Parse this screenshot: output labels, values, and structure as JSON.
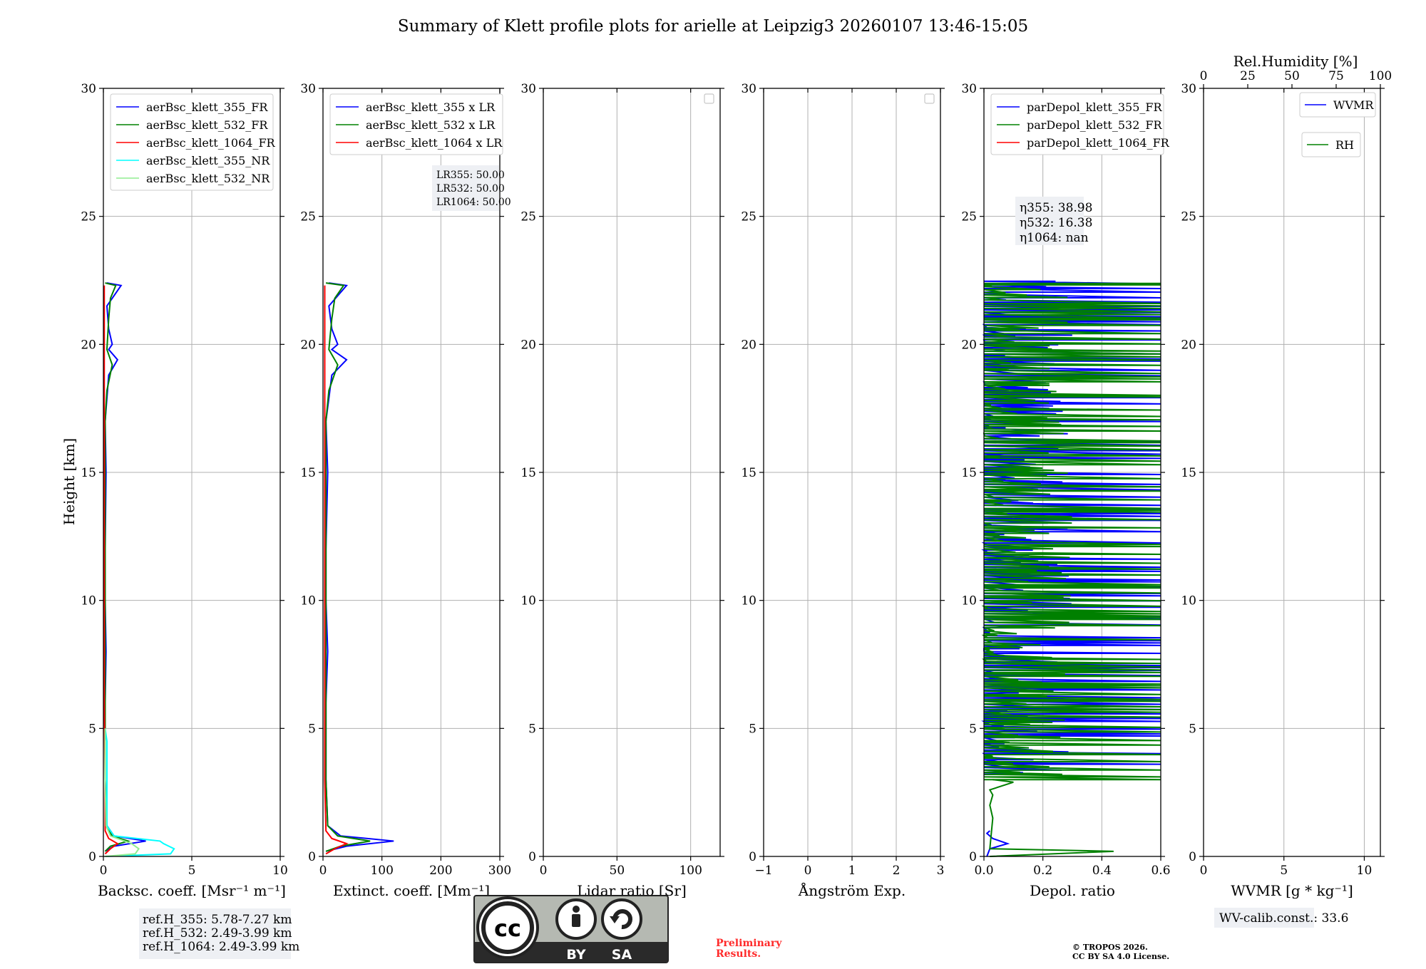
{
  "figure": {
    "title": "Summary of Klett profile plots for arielle at Leipzig3 20260107 13:46-15:05",
    "ylabel": "Height [km]",
    "yticks": [
      "0",
      "5",
      "10",
      "15",
      "20",
      "25",
      "30"
    ]
  },
  "chart_data": [
    {
      "id": "backscatter",
      "type": "line",
      "xlabel": "Backsc. coeff. [Msr⁻¹ m⁻¹]",
      "xlim": [
        0,
        10
      ],
      "ylim": [
        0,
        30
      ],
      "xticks": [
        "0",
        "5",
        "10"
      ],
      "legend": [
        "aerBsc_klett_355_FR",
        "aerBsc_klett_532_FR",
        "aerBsc_klett_1064_FR",
        "aerBsc_klett_355_NR",
        "aerBsc_klett_532_NR"
      ],
      "series": [
        {
          "name": "aerBsc_klett_355_FR",
          "color": "#0000ff",
          "x": [
            0.1,
            0.6,
            2.4,
            0.6,
            0.2,
            0.1,
            0.1,
            0.15,
            0.1,
            0.1,
            0.15,
            0.1,
            0.3,
            0.8,
            0.3,
            0.5,
            0.3,
            0.2,
            1.0,
            0.2
          ],
          "y": [
            0.2,
            0.4,
            0.6,
            0.8,
            1.2,
            3,
            6,
            8,
            10,
            12,
            15,
            17,
            18.8,
            19.4,
            19.8,
            20.0,
            20.6,
            21.5,
            22.3,
            22.4
          ]
        },
        {
          "name": "aerBsc_klett_532_FR",
          "color": "#008000",
          "x": [
            0.1,
            0.4,
            1.4,
            0.5,
            0.15,
            0.1,
            0.1,
            0.1,
            0.1,
            0.1,
            0.1,
            0.1,
            0.2,
            0.5,
            0.2,
            0.3,
            0.4,
            0.7,
            0.1
          ],
          "y": [
            0.2,
            0.4,
            0.6,
            0.8,
            1.2,
            3,
            6,
            8,
            10,
            12,
            15,
            17,
            18.2,
            19.2,
            19.8,
            21.0,
            21.8,
            22.3,
            22.4
          ]
        },
        {
          "name": "aerBsc_klett_1064_FR",
          "color": "#ff0000",
          "x": [
            0.1,
            0.4,
            0.8,
            0.3,
            0.1,
            0.1,
            0.05,
            0.05,
            0.05,
            0.05,
            0.05,
            0.05,
            0.05
          ],
          "y": [
            0.1,
            0.3,
            0.5,
            0.7,
            1.0,
            3,
            6,
            10,
            14,
            18,
            20,
            22,
            22.3
          ]
        },
        {
          "name": "aerBsc_klett_355_NR",
          "color": "#00ffff",
          "x": [
            0.1,
            3.8,
            4.0,
            3.4,
            3.2,
            0.6,
            0.2,
            0.2,
            0.2,
            0.1
          ],
          "y": [
            0.0,
            0.1,
            0.3,
            0.5,
            0.6,
            0.8,
            1.2,
            3.0,
            4.5,
            5.0
          ]
        },
        {
          "name": "aerBsc_klett_532_NR",
          "color": "#90ee90",
          "x": [
            0.1,
            1.8,
            2.0,
            1.6,
            0.4,
            0.15,
            0.1,
            0.1
          ],
          "y": [
            0.0,
            0.1,
            0.3,
            0.5,
            0.8,
            1.2,
            3.0,
            5.0
          ]
        }
      ],
      "footnote": [
        "ref.H_355: 5.78-7.27 km",
        "ref.H_532: 2.49-3.99 km",
        "ref.H_1064: 2.49-3.99 km"
      ]
    },
    {
      "id": "extinction",
      "type": "line",
      "xlabel": "Extinct. coeff. [Mm⁻¹]",
      "xlim": [
        0,
        300
      ],
      "ylim": [
        0,
        30
      ],
      "xticks": [
        "0",
        "100",
        "200",
        "300"
      ],
      "legend": [
        "aerBsc_klett_355 x LR",
        "aerBsc_klett_532 x LR",
        "aerBsc_klett_1064 x LR"
      ],
      "series": [
        {
          "name": "aerBsc_klett_355 x LR",
          "color": "#0000ff",
          "x": [
            5,
            40,
            120,
            30,
            8,
            5,
            5,
            8,
            5,
            5,
            8,
            5,
            15,
            40,
            15,
            25,
            15,
            10,
            40,
            10
          ],
          "y": [
            0.2,
            0.4,
            0.6,
            0.8,
            1.2,
            3,
            6,
            8,
            10,
            12,
            15,
            17,
            18.8,
            19.4,
            19.8,
            20.0,
            20.6,
            21.5,
            22.3,
            22.4
          ]
        },
        {
          "name": "aerBsc_klett_532 x LR",
          "color": "#008000",
          "x": [
            5,
            30,
            80,
            25,
            8,
            5,
            5,
            5,
            5,
            5,
            5,
            5,
            10,
            25,
            10,
            15,
            20,
            35,
            5
          ],
          "y": [
            0.2,
            0.4,
            0.6,
            0.8,
            1.2,
            3,
            6,
            8,
            10,
            12,
            15,
            17,
            18.2,
            19.2,
            19.8,
            21.0,
            21.8,
            22.3,
            22.4
          ]
        },
        {
          "name": "aerBsc_klett_1064 x LR",
          "color": "#ff0000",
          "x": [
            5,
            20,
            40,
            15,
            5,
            3,
            3,
            3,
            3,
            3,
            3
          ],
          "y": [
            0.1,
            0.3,
            0.5,
            0.7,
            1.0,
            3,
            6,
            10,
            14,
            18,
            22.3
          ]
        }
      ],
      "annotation": [
        "LR355: 50.00",
        "LR532: 50.00",
        "LR1064: 50.00"
      ]
    },
    {
      "id": "lidar_ratio",
      "type": "line",
      "xlabel": "Lidar ratio [Sr]",
      "xlim": [
        0,
        120
      ],
      "ylim": [
        0,
        30
      ],
      "xticks": [
        "0",
        "50",
        "100"
      ],
      "series": []
    },
    {
      "id": "angstrom",
      "type": "line",
      "xlabel": "Ångström Exp.",
      "xlim": [
        -1,
        3
      ],
      "ylim": [
        0,
        30
      ],
      "xticks": [
        "−1",
        "0",
        "1",
        "2",
        "3"
      ],
      "series": []
    },
    {
      "id": "depol",
      "type": "line",
      "xlabel": "Depol. ratio",
      "xlim": [
        0,
        0.6
      ],
      "ylim": [
        0,
        30
      ],
      "xticks": [
        "0.0",
        "0.2",
        "0.4",
        "0.6"
      ],
      "legend": [
        "parDepol_klett_355_FR",
        "parDepol_klett_532_FR",
        "parDepol_klett_1064_FR"
      ],
      "series": [
        {
          "name": "parDepol_klett_355_FR",
          "color": "#0000ff",
          "x": [
            0.01,
            0.02,
            0.08,
            0.03,
            0.01,
            0.02
          ],
          "y": [
            0.0,
            0.3,
            0.5,
            0.7,
            0.9,
            1.0
          ],
          "noisy_from_km": 3.2,
          "noisy_to_km": 22.5
        },
        {
          "name": "parDepol_klett_532_FR",
          "color": "#008000",
          "x": [
            0.02,
            0.44,
            0.02,
            0.03,
            0.02,
            0.03,
            0.02,
            0.1,
            0.03
          ],
          "y": [
            0.0,
            0.2,
            0.3,
            1.5,
            2.0,
            2.4,
            2.6,
            2.9,
            3.0
          ],
          "noisy_from_km": 3.0,
          "noisy_to_km": 22.5
        },
        {
          "name": "parDepol_klett_1064_FR",
          "color": "#ff0000",
          "x": [],
          "y": []
        }
      ],
      "annotation": [
        "η355: 38.98",
        "η532: 16.38",
        "η1064: nan"
      ]
    },
    {
      "id": "wvmr",
      "type": "line",
      "xlabel": "WVMR [g * kg⁻¹]",
      "xlim": [
        0,
        11
      ],
      "ylim": [
        0,
        30
      ],
      "xticks": [
        "0",
        "5",
        "10"
      ],
      "top_xlabel": "Rel.Humidity [%]",
      "top_xticks": [
        "0",
        "25",
        "50",
        "75",
        "100"
      ],
      "legend": [
        "WVMR",
        "RH"
      ],
      "series": [],
      "footnote": [
        "WV-calib.const.: 33.6"
      ]
    }
  ],
  "footer": {
    "license_badge": {
      "cc": "cc",
      "by": "BY",
      "sa": "SA"
    },
    "preliminary": [
      "Preliminary",
      "Results."
    ],
    "copyright": [
      "© TROPOS 2026.",
      "CC BY SA 4.0 License."
    ]
  }
}
